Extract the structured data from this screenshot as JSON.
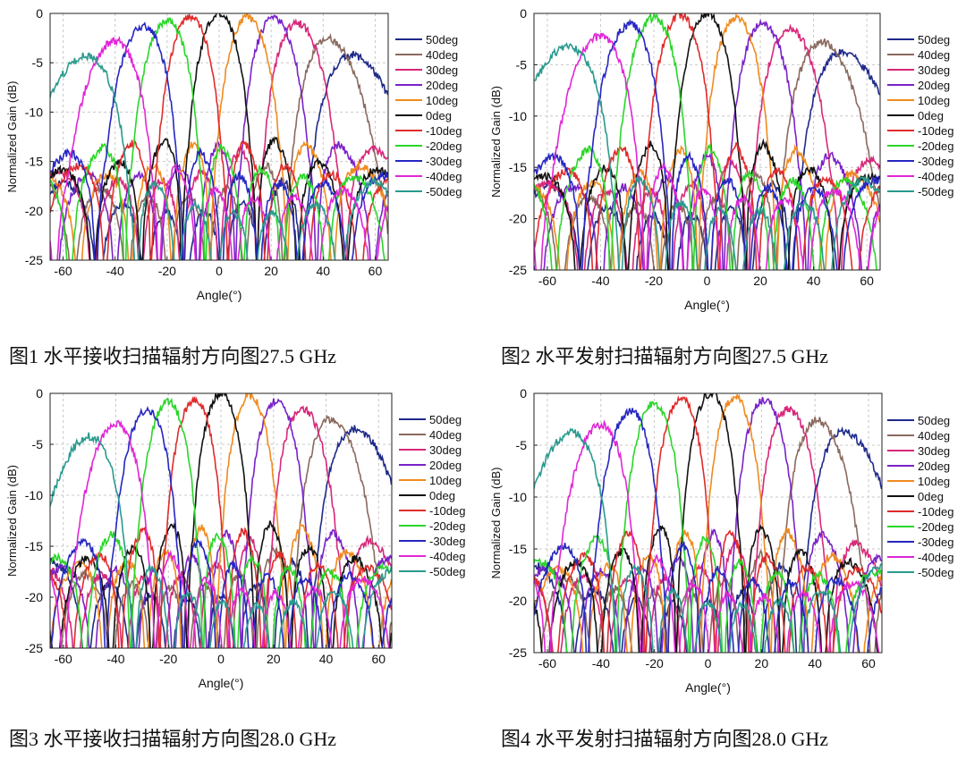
{
  "colors": {
    "50deg": "#1f2a8a",
    "40deg": "#8a6a5e",
    "30deg": "#d8287a",
    "20deg": "#7a22c8",
    "10deg": "#f08a1e",
    "0deg": "#111111",
    "-10deg": "#e02b2b",
    "-20deg": "#2ad62a",
    "-30deg": "#2626c2",
    "-40deg": "#e026d6",
    "-50deg": "#2a9a8e"
  },
  "chart_data": [
    {
      "type": "line",
      "caption": "图1 水平接收扫描辐射方向图27.5 GHz",
      "xlabel": "Angle(°)",
      "ylabel": "Normalized Gain (dB)",
      "xlim": [
        -65,
        65
      ],
      "ylim": [
        -25,
        0
      ],
      "xticks": [
        -60,
        -40,
        -20,
        0,
        20,
        40,
        60
      ],
      "yticks": [
        0,
        -5,
        -10,
        -15,
        -20,
        -25
      ],
      "grid": true,
      "legend": "right",
      "series": [
        {
          "name": "50deg",
          "peak_angle": 51,
          "peak_gain": -4.2
        },
        {
          "name": "40deg",
          "peak_angle": 42,
          "peak_gain": -2.6
        },
        {
          "name": "30deg",
          "peak_angle": 30,
          "peak_gain": -1.0
        },
        {
          "name": "20deg",
          "peak_angle": 21,
          "peak_gain": -0.5
        },
        {
          "name": "10deg",
          "peak_angle": 11,
          "peak_gain": -0.4
        },
        {
          "name": "0deg",
          "peak_angle": 0,
          "peak_gain": 0
        },
        {
          "name": "-10deg",
          "peak_angle": -11,
          "peak_gain": -0.4
        },
        {
          "name": "-20deg",
          "peak_angle": -20,
          "peak_gain": -0.7
        },
        {
          "name": "-30deg",
          "peak_angle": -29,
          "peak_gain": -1.3
        },
        {
          "name": "-40deg",
          "peak_angle": -40,
          "peak_gain": -2.8
        },
        {
          "name": "-50deg",
          "peak_angle": -51,
          "peak_gain": -4.3
        }
      ]
    },
    {
      "type": "line",
      "caption": "图2 水平发射扫描辐射方向图27.5 GHz",
      "xlabel": "Angle(°)",
      "ylabel": "Normalized Gain (dB)",
      "xlim": [
        -65,
        65
      ],
      "ylim": [
        -25,
        0
      ],
      "xticks": [
        -60,
        -40,
        -20,
        0,
        20,
        40,
        60
      ],
      "yticks": [
        0,
        -5,
        -10,
        -15,
        -20,
        -25
      ],
      "grid": true,
      "legend": "right",
      "series": [
        {
          "name": "50deg",
          "peak_angle": 51,
          "peak_gain": -3.8
        },
        {
          "name": "40deg",
          "peak_angle": 43,
          "peak_gain": -2.8
        },
        {
          "name": "30deg",
          "peak_angle": 31,
          "peak_gain": -1.5
        },
        {
          "name": "20deg",
          "peak_angle": 21,
          "peak_gain": -1.0
        },
        {
          "name": "10deg",
          "peak_angle": 11,
          "peak_gain": -0.5
        },
        {
          "name": "0deg",
          "peak_angle": 0,
          "peak_gain": 0
        },
        {
          "name": "-10deg",
          "peak_angle": -10,
          "peak_gain": -0.2
        },
        {
          "name": "-20deg",
          "peak_angle": -20,
          "peak_gain": -0.4
        },
        {
          "name": "-30deg",
          "peak_angle": -29,
          "peak_gain": -1.1
        },
        {
          "name": "-40deg",
          "peak_angle": -40,
          "peak_gain": -2.2
        },
        {
          "name": "-50deg",
          "peak_angle": -52,
          "peak_gain": -3.3
        }
      ]
    },
    {
      "type": "line",
      "caption": "图3 水平接收扫描辐射方向图28.0 GHz",
      "xlabel": "Angle(°)",
      "ylabel": "Normalized Gain (dB)",
      "xlim": [
        -65,
        65
      ],
      "ylim": [
        -25,
        0
      ],
      "xticks": [
        -60,
        -40,
        -20,
        0,
        20,
        40,
        60
      ],
      "yticks": [
        0,
        -5,
        -10,
        -15,
        -20,
        -25
      ],
      "grid": true,
      "legend": "right",
      "series": [
        {
          "name": "50deg",
          "peak_angle": 51,
          "peak_gain": -3.5
        },
        {
          "name": "40deg",
          "peak_angle": 42,
          "peak_gain": -2.5
        },
        {
          "name": "30deg",
          "peak_angle": 31,
          "peak_gain": -1.5
        },
        {
          "name": "20deg",
          "peak_angle": 21,
          "peak_gain": -0.8
        },
        {
          "name": "10deg",
          "peak_angle": 11,
          "peak_gain": -0.3
        },
        {
          "name": "0deg",
          "peak_angle": 0,
          "peak_gain": 0
        },
        {
          "name": "-10deg",
          "peak_angle": -10,
          "peak_gain": -0.6
        },
        {
          "name": "-20deg",
          "peak_angle": -20,
          "peak_gain": -0.9
        },
        {
          "name": "-30deg",
          "peak_angle": -28,
          "peak_gain": -1.6
        },
        {
          "name": "-40deg",
          "peak_angle": -40,
          "peak_gain": -3.0
        },
        {
          "name": "-50deg",
          "peak_angle": -50,
          "peak_gain": -4.2
        }
      ]
    },
    {
      "type": "line",
      "caption": "图4 水平发射扫描辐射方向图28.0 GHz",
      "xlabel": "Angle(°)",
      "ylabel": "Normalized Gain (dB)",
      "xlim": [
        -65,
        65
      ],
      "ylim": [
        -25,
        0
      ],
      "xticks": [
        -60,
        -40,
        -20,
        0,
        20,
        40,
        60
      ],
      "yticks": [
        0,
        -5,
        -10,
        -15,
        -20,
        -25
      ],
      "grid": true,
      "legend": "right",
      "series": [
        {
          "name": "50deg",
          "peak_angle": 51,
          "peak_gain": -3.7
        },
        {
          "name": "40deg",
          "peak_angle": 41,
          "peak_gain": -2.6
        },
        {
          "name": "30deg",
          "peak_angle": 30,
          "peak_gain": -1.5
        },
        {
          "name": "20deg",
          "peak_angle": 21,
          "peak_gain": -0.6
        },
        {
          "name": "10deg",
          "peak_angle": 10,
          "peak_gain": -0.4
        },
        {
          "name": "0deg",
          "peak_angle": 1,
          "peak_gain": 0
        },
        {
          "name": "-10deg",
          "peak_angle": -10,
          "peak_gain": -0.5
        },
        {
          "name": "-20deg",
          "peak_angle": -20,
          "peak_gain": -1.0
        },
        {
          "name": "-30deg",
          "peak_angle": -29,
          "peak_gain": -1.7
        },
        {
          "name": "-40deg",
          "peak_angle": -40,
          "peak_gain": -3.0
        },
        {
          "name": "-50deg",
          "peak_angle": -51,
          "peak_gain": -3.8
        }
      ]
    }
  ]
}
